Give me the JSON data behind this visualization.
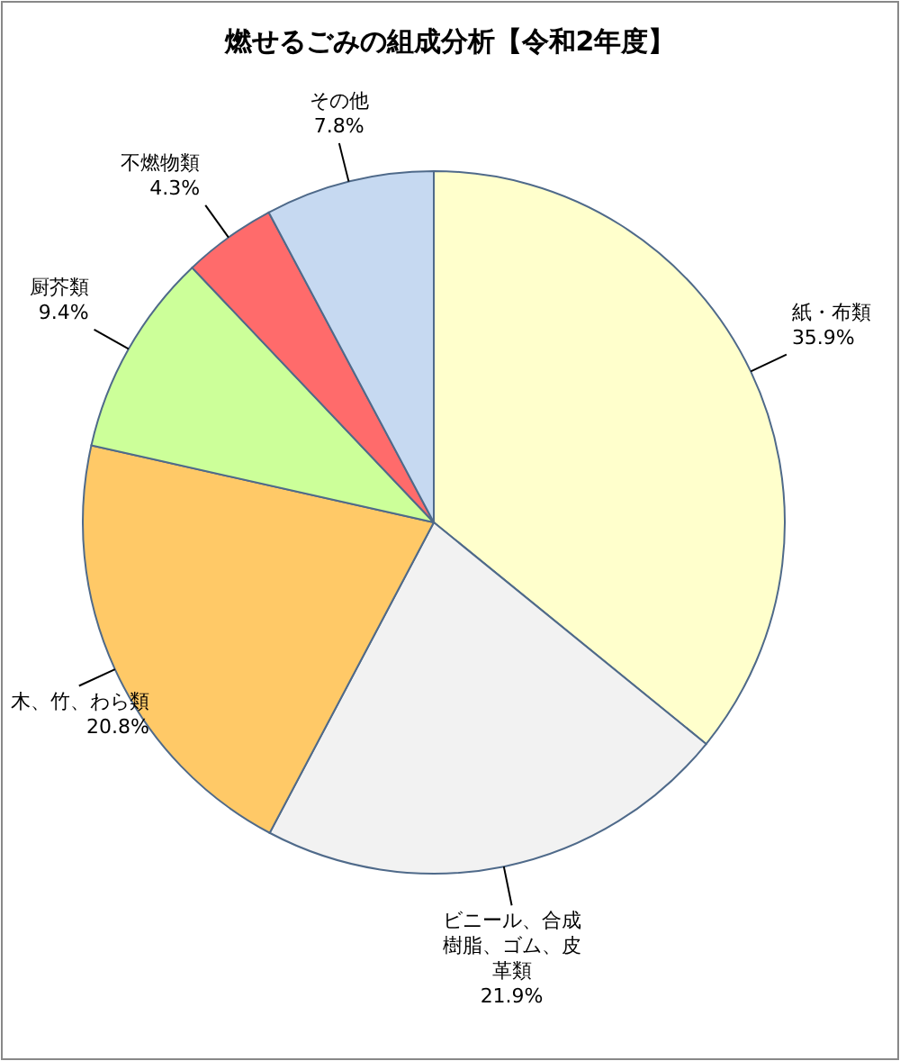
{
  "chart_data": {
    "type": "pie",
    "title": "燃せるごみの組成分析【令和2年度】",
    "categories": [
      "紙・布類",
      "ビニール、合成樹脂、ゴム、皮革類",
      "木、竹、わら類",
      "厨芥類",
      "不燃物類",
      "その他"
    ],
    "values": [
      35.9,
      21.9,
      20.8,
      9.4,
      4.3,
      7.8
    ],
    "value_labels": [
      "35.9%",
      "21.9%",
      "20.8%",
      "9.4%",
      "4.3%",
      "7.8%"
    ],
    "colors": [
      "#ffffcc",
      "#f2f2f2",
      "#ffc967",
      "#ccff99",
      "#ff6b6b",
      "#c6d9f1"
    ],
    "legend": false
  }
}
